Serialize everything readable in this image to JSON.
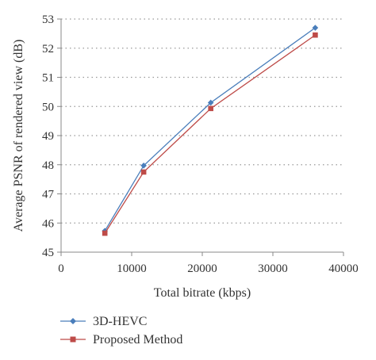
{
  "chart_data": {
    "type": "line",
    "xlabel": "Total bitrate (kbps)",
    "ylabel": "Average PSNR of rendered view (dB)",
    "xlim": [
      0,
      40000
    ],
    "ylim": [
      45,
      53
    ],
    "xticks": [
      0,
      10000,
      20000,
      30000,
      40000
    ],
    "xtick_labels": [
      "0",
      "10000",
      "20000",
      "30000",
      "40000"
    ],
    "yticks": [
      45,
      46,
      47,
      48,
      49,
      50,
      51,
      52,
      53
    ],
    "ytick_labels": [
      "45",
      "46",
      "47",
      "48",
      "49",
      "50",
      "51",
      "52",
      "53"
    ],
    "grid": "horizontal dotted",
    "legend_position": "bottom-left, below plot",
    "series": [
      {
        "name": "3D-HEVC",
        "color": "#4a7ebb",
        "marker": "diamond",
        "x": [
          6200,
          11700,
          21200,
          36000
        ],
        "y": [
          45.73,
          47.97,
          50.13,
          52.7
        ]
      },
      {
        "name": "Proposed Method",
        "color": "#be4b48",
        "marker": "square",
        "x": [
          6200,
          11700,
          21200,
          36000
        ],
        "y": [
          45.65,
          47.75,
          49.93,
          52.45
        ]
      }
    ]
  }
}
